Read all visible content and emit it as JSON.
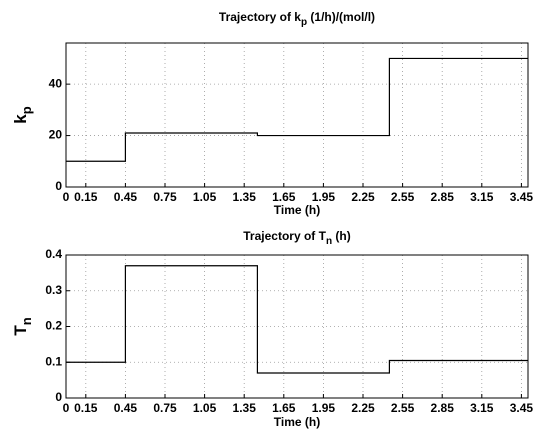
{
  "chart_data": [
    {
      "type": "line",
      "title": [
        "Trajectory of k",
        "p",
        " (1/h)/(mol/l)"
      ],
      "xlabel": "Time (h)",
      "ylabel": [
        "k",
        "p"
      ],
      "x": [
        0,
        0.45,
        0.45,
        1.45,
        1.45,
        2.45,
        2.45,
        3.5
      ],
      "values": [
        10,
        10,
        21,
        21,
        20,
        20,
        50,
        50
      ],
      "color": "#000000",
      "xlim": [
        0,
        3.5
      ],
      "xticks": [
        0,
        0.15,
        0.45,
        0.75,
        1.05,
        1.35,
        1.65,
        1.95,
        2.25,
        2.55,
        2.85,
        3.15,
        3.45
      ],
      "ylim": [
        0,
        56
      ],
      "yticks": [
        0,
        20,
        40
      ],
      "grid": true
    },
    {
      "type": "line",
      "title": [
        "Trajectory of T",
        "n",
        " (h)"
      ],
      "xlabel": "Time (h)",
      "ylabel": [
        "T",
        "n"
      ],
      "x": [
        0,
        0.45,
        0.45,
        1.45,
        1.45,
        2.45,
        2.45,
        3.5
      ],
      "values": [
        0.1,
        0.1,
        0.37,
        0.37,
        0.07,
        0.07,
        0.105,
        0.105
      ],
      "color": "#000000",
      "xlim": [
        0,
        3.5
      ],
      "xticks": [
        0,
        0.15,
        0.45,
        0.75,
        1.05,
        1.35,
        1.65,
        1.95,
        2.25,
        2.55,
        2.85,
        3.15,
        3.45
      ],
      "ylim": [
        0,
        0.4
      ],
      "yticks": [
        0,
        0.1,
        0.2,
        0.3,
        0.4
      ],
      "grid": true
    }
  ]
}
